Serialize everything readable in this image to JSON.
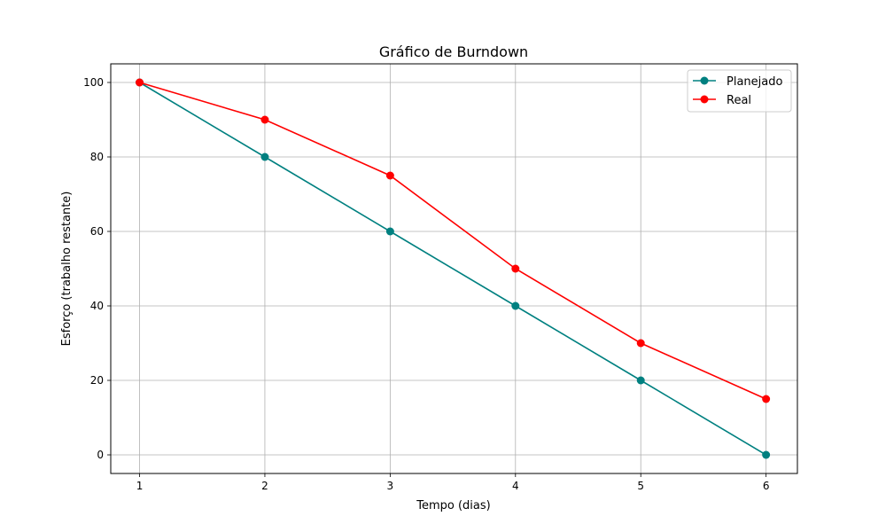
{
  "chart_data": {
    "type": "line",
    "title": "Gráfico de Burndown",
    "xlabel": "Tempo (dias)",
    "ylabel": "Esforço (trabalho restante)",
    "x": [
      1,
      2,
      3,
      4,
      5,
      6
    ],
    "xlim": [
      0.77,
      6.25
    ],
    "ylim": [
      -5,
      105
    ],
    "xticks": [
      1,
      2,
      3,
      4,
      5,
      6
    ],
    "yticks": [
      0,
      20,
      40,
      60,
      80,
      100
    ],
    "grid": true,
    "legend_position": "top-right",
    "series": [
      {
        "name": "Planejado",
        "values": [
          100,
          80,
          60,
          40,
          20,
          0
        ],
        "color": "#008080"
      },
      {
        "name": "Real",
        "values": [
          100,
          90,
          75,
          50,
          30,
          15
        ],
        "color": "#ff0000"
      }
    ]
  }
}
